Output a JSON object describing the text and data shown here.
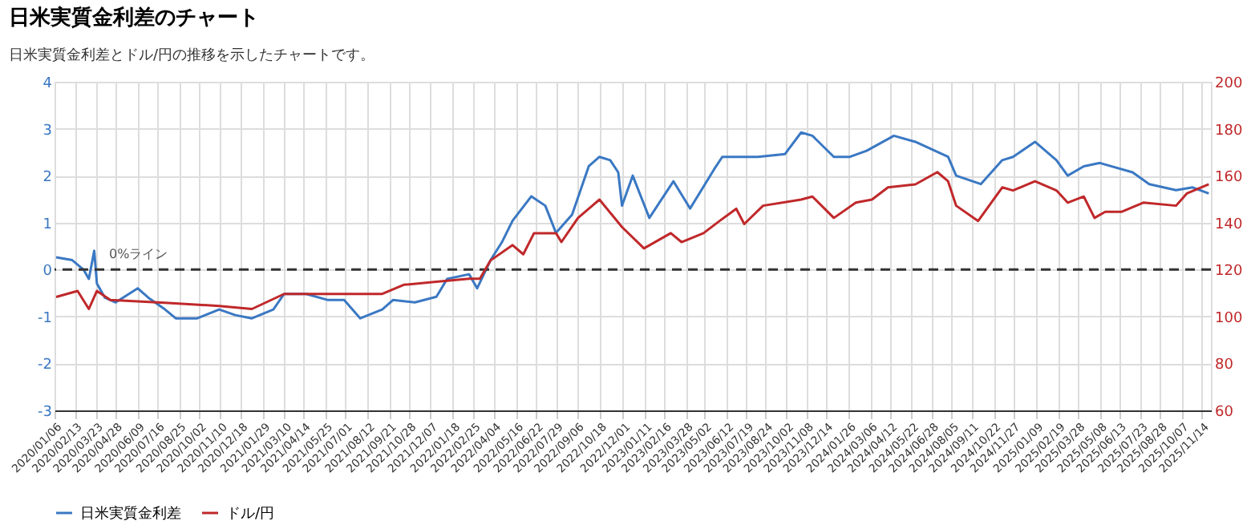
{
  "chart_data": {
    "type": "line",
    "title": "日米実質金利差のチャート",
    "subtitle": "日米実質金利差とドル/円の推移を示したチャートです。",
    "xlim": [
      "2020-01-06",
      "2025-12-01"
    ],
    "xticks": [
      {
        "value": "2020-01-06",
        "label": "2020/01/06"
      },
      {
        "value": "2020-02-13",
        "label": "2020/02/13"
      },
      {
        "value": "2020-03-23",
        "label": "2020/03/23"
      },
      {
        "value": "2020-04-28",
        "label": "2020/04/28"
      },
      {
        "value": "2020-06-09",
        "label": "2020/06/09"
      },
      {
        "value": "2020-07-16",
        "label": "2020/07/16"
      },
      {
        "value": "2020-08-25",
        "label": "2020/08/25"
      },
      {
        "value": "2020-10-02",
        "label": "2020/10/02"
      },
      {
        "value": "2020-11-10",
        "label": "2020/11/10"
      },
      {
        "value": "2020-12-18",
        "label": "2020/12/18"
      },
      {
        "value": "2021-01-29",
        "label": "2021/01/29"
      },
      {
        "value": "2021-03-10",
        "label": "2021/03/10"
      },
      {
        "value": "2021-04-14",
        "label": "2021/04/14"
      },
      {
        "value": "2021-05-25",
        "label": "2021/05/25"
      },
      {
        "value": "2021-07-01",
        "label": "2021/07/01"
      },
      {
        "value": "2021-08-12",
        "label": "2021/08/12"
      },
      {
        "value": "2021-09-21",
        "label": "2021/09/21"
      },
      {
        "value": "2021-10-28",
        "label": "2021/10/28"
      },
      {
        "value": "2021-12-07",
        "label": "2021/12/07"
      },
      {
        "value": "2022-01-18",
        "label": "2022/01/18"
      },
      {
        "value": "2022-02-25",
        "label": "2022/02/25"
      },
      {
        "value": "2022-04-04",
        "label": "2022/04/04"
      },
      {
        "value": "2022-05-16",
        "label": "2022/05/16"
      },
      {
        "value": "2022-06-22",
        "label": "2022/06/22"
      },
      {
        "value": "2022-07-29",
        "label": "2022/07/29"
      },
      {
        "value": "2022-09-06",
        "label": "2022/09/06"
      },
      {
        "value": "2022-10-18",
        "label": "2022/10/18"
      },
      {
        "value": "2022-12-01",
        "label": "2022/12/01"
      },
      {
        "value": "2023-01-11",
        "label": "2023/01/11"
      },
      {
        "value": "2023-02-16",
        "label": "2023/02/16"
      },
      {
        "value": "2023-03-28",
        "label": "2023/03/28"
      },
      {
        "value": "2023-05-02",
        "label": "2023/05/02"
      },
      {
        "value": "2023-06-12",
        "label": "2023/06/12"
      },
      {
        "value": "2023-07-19",
        "label": "2023/07/19"
      },
      {
        "value": "2023-08-24",
        "label": "2023/08/24"
      },
      {
        "value": "2023-10-02",
        "label": "2023/10/02"
      },
      {
        "value": "2023-11-08",
        "label": "2023/11/08"
      },
      {
        "value": "2023-12-14",
        "label": "2023/12/14"
      },
      {
        "value": "2024-01-26",
        "label": "2024/01/26"
      },
      {
        "value": "2024-03-06",
        "label": "2024/03/06"
      },
      {
        "value": "2024-04-12",
        "label": "2024/04/12"
      },
      {
        "value": "2024-05-22",
        "label": "2024/05/22"
      },
      {
        "value": "2024-06-28",
        "label": "2024/06/28"
      },
      {
        "value": "2024-08-05",
        "label": "2024/08/05"
      },
      {
        "value": "2024-09-11",
        "label": "2024/09/11"
      },
      {
        "value": "2024-10-22",
        "label": "2024/10/22"
      },
      {
        "value": "2024-11-27",
        "label": "2024/11/27"
      },
      {
        "value": "2025-01-09",
        "label": "2025/01/09"
      },
      {
        "value": "2025-02-19",
        "label": "2025/02/19"
      },
      {
        "value": "2025-03-28",
        "label": "2025/03/28"
      },
      {
        "value": "2025-05-08",
        "label": "2025/05/08"
      },
      {
        "value": "2025-06-13",
        "label": "2025/06/13"
      },
      {
        "value": "2025-07-23",
        "label": "2025/07/23"
      },
      {
        "value": "2025-08-28",
        "label": "2025/08/28"
      },
      {
        "value": "2025-10-07",
        "label": "2025/10/07"
      },
      {
        "value": "2025-11-14",
        "label": "2025/11/14"
      }
    ],
    "ylim": [
      -3,
      4
    ],
    "yticks": [
      -3,
      -2,
      -1,
      0,
      1,
      2,
      3,
      4
    ],
    "y2lim": [
      60,
      200
    ],
    "y2ticks": [
      60,
      80,
      100,
      120,
      140,
      160,
      180,
      200
    ],
    "grid": true,
    "legend": "bottom",
    "line_style": "solid",
    "marker": "none",
    "ref_lines": [
      {
        "axis": "y",
        "value": 0,
        "label": "0%ライン",
        "color": "#333333",
        "line_style": "dashed"
      }
    ],
    "series": [
      {
        "name": "日米実質金利差",
        "color": "#3a78c3",
        "x": [
          "2020-01-09",
          "2020-02-08",
          "2020-02-29",
          "2020-03-10",
          "2020-03-20",
          "2020-03-25",
          "2020-04-09",
          "2020-04-29",
          "2020-06-09",
          "2020-06-29",
          "2020-07-30",
          "2020-08-19",
          "2020-09-28",
          "2020-11-08",
          "2020-12-08",
          "2021-01-08",
          "2021-02-17",
          "2021-03-09",
          "2021-04-19",
          "2021-05-30",
          "2021-06-29",
          "2021-07-29",
          "2021-09-08",
          "2021-09-28",
          "2021-11-08",
          "2021-12-18",
          "2022-01-07",
          "2022-02-17",
          "2022-03-04",
          "2022-03-29",
          "2022-04-19",
          "2022-05-09",
          "2022-06-13",
          "2022-07-09",
          "2022-07-29",
          "2022-08-28",
          "2022-09-28",
          "2022-10-18",
          "2022-11-07",
          "2022-11-22",
          "2022-11-29",
          "2022-12-19",
          "2023-01-19",
          "2023-02-18",
          "2023-03-05",
          "2023-04-05",
          "2023-05-20",
          "2023-06-04",
          "2023-08-09",
          "2023-09-29",
          "2023-10-29",
          "2023-11-19",
          "2023-12-29",
          "2024-01-28",
          "2024-02-28",
          "2024-04-19",
          "2024-05-29",
          "2024-07-29",
          "2024-08-13",
          "2024-09-28",
          "2024-11-07",
          "2024-11-27",
          "2025-01-07",
          "2025-02-16",
          "2025-03-09",
          "2025-04-08",
          "2025-05-08",
          "2025-07-08",
          "2025-08-08",
          "2025-09-27",
          "2025-10-28",
          "2025-11-27"
        ],
        "values": [
          0.26,
          0.2,
          0,
          -0.2,
          0.4,
          -0.3,
          -0.6,
          -0.7,
          -0.4,
          -0.6,
          -0.85,
          -1.04,
          -1.04,
          -0.85,
          -0.97,
          -1.04,
          -0.85,
          -0.52,
          -0.52,
          -0.65,
          -0.65,
          -1.04,
          -0.85,
          -0.65,
          -0.7,
          -0.58,
          -0.2,
          -0.1,
          -0.4,
          0.2,
          0.58,
          1.04,
          1.56,
          1.36,
          0.78,
          1.17,
          2.2,
          2.4,
          2.33,
          2.07,
          1.36,
          2.0,
          1.1,
          1.62,
          1.88,
          1.3,
          2.14,
          2.4,
          2.4,
          2.46,
          2.92,
          2.85,
          2.4,
          2.4,
          2.53,
          2.85,
          2.72,
          2.4,
          2.0,
          1.82,
          2.33,
          2.4,
          2.72,
          2.33,
          2.0,
          2.2,
          2.27,
          2.07,
          1.82,
          1.69,
          1.75,
          1.62
        ]
      },
      {
        "name": "ドル/円",
        "color": "#c0282a",
        "axis": "y2",
        "x": [
          "2020-01-09",
          "2020-02-18",
          "2020-03-10",
          "2020-03-25",
          "2020-04-19",
          "2020-07-30",
          "2020-11-08",
          "2021-01-08",
          "2021-03-09",
          "2021-05-30",
          "2021-09-08",
          "2021-10-18",
          "2021-12-18",
          "2022-02-17",
          "2022-03-09",
          "2022-03-29",
          "2022-05-09",
          "2022-05-29",
          "2022-06-18",
          "2022-07-29",
          "2022-08-08",
          "2022-09-08",
          "2022-10-18",
          "2022-11-29",
          "2023-01-09",
          "2023-02-28",
          "2023-03-20",
          "2023-04-30",
          "2023-05-30",
          "2023-06-30",
          "2023-07-15",
          "2023-08-19",
          "2023-10-29",
          "2023-11-19",
          "2023-12-29",
          "2024-02-08",
          "2024-03-09",
          "2024-04-08",
          "2024-05-29",
          "2024-07-09",
          "2024-07-29",
          "2024-08-13",
          "2024-09-23",
          "2024-11-07",
          "2024-11-27",
          "2025-01-07",
          "2025-02-16",
          "2025-03-09",
          "2025-04-08",
          "2025-04-28",
          "2025-05-18",
          "2025-06-18",
          "2025-07-28",
          "2025-09-27",
          "2025-10-17",
          "2025-11-27"
        ],
        "values": [
          108.3,
          110.9,
          103.2,
          110.9,
          107,
          105.8,
          104.5,
          103.2,
          109.6,
          109.6,
          109.6,
          113.5,
          114.8,
          116.1,
          116.1,
          123.9,
          130.4,
          126.5,
          135.5,
          135.5,
          131.7,
          142,
          149.8,
          138.1,
          129,
          135.5,
          131.7,
          135.5,
          140.7,
          145.9,
          139.4,
          147.2,
          149.8,
          151.1,
          142,
          148.5,
          149.8,
          155,
          156.3,
          161.5,
          157.6,
          147.2,
          140.7,
          155,
          153.7,
          157.6,
          153.7,
          148.5,
          151.1,
          142,
          144.6,
          144.6,
          148.5,
          147.2,
          152.4,
          156.3
        ]
      }
    ]
  }
}
